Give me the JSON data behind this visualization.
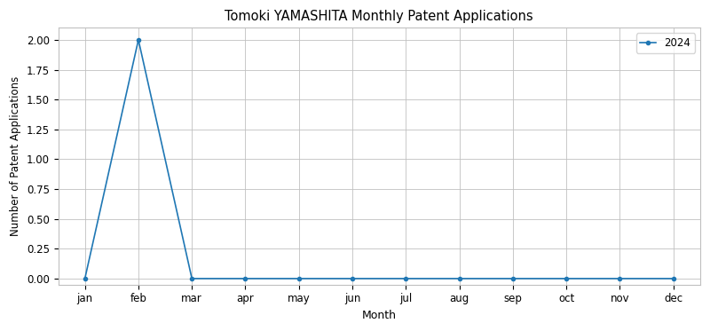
{
  "title": "Tomoki YAMASHITA Monthly Patent Applications",
  "xlabel": "Month",
  "ylabel": "Number of Patent Applications",
  "legend_label": "2024",
  "months": [
    "jan",
    "feb",
    "mar",
    "apr",
    "may",
    "jun",
    "jul",
    "aug",
    "sep",
    "oct",
    "nov",
    "dec"
  ],
  "values_2024": [
    0,
    2,
    0,
    0,
    0,
    0,
    0,
    0,
    0,
    0,
    0,
    0
  ],
  "line_color": "#1f77b4",
  "marker": "o",
  "marker_size": 3,
  "ylim": [
    -0.05,
    2.1
  ],
  "yticks": [
    0.0,
    0.25,
    0.5,
    0.75,
    1.0,
    1.25,
    1.5,
    1.75,
    2.0
  ],
  "grid_color": "#c0c0c0",
  "figsize": [
    8.0,
    3.73
  ],
  "dpi": 100,
  "bg_color": "#ffffff",
  "axes_bg_color": "#ffffff"
}
